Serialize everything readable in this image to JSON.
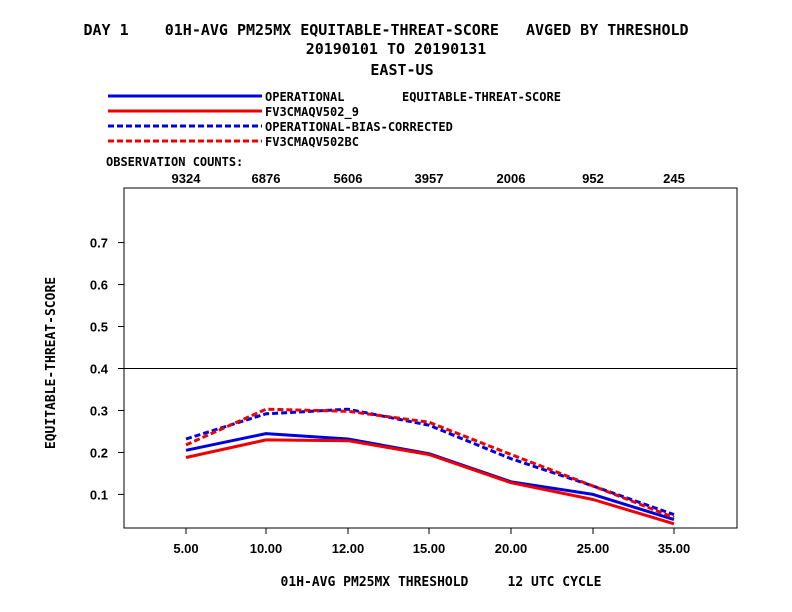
{
  "header": {
    "title_line1": "DAY 1    01H-AVG PM25MX EQUITABLE-THREAT-SCORE   AVGED BY THRESHOLD",
    "title_line2": "20190101 TO 20190131",
    "title_line3": "EAST-US"
  },
  "chart_data": {
    "type": "line",
    "ylabel": "EQUITABLE-THREAT-SCORE",
    "xlabel": "01H-AVG PM25MX THRESHOLD     12 UTC CYCLE",
    "legend_label": "EQUITABLE-THREAT-SCORE",
    "legend_placement": "top-left above plot",
    "categories": [
      "5.00",
      "10.00",
      "12.00",
      "15.00",
      "20.00",
      "25.00",
      "35.00"
    ],
    "observation_counts_label": "OBSERVATION COUNTS:",
    "observation_counts": [
      "9324",
      "6876",
      "5606",
      "3957",
      "2006",
      "952",
      "245"
    ],
    "yticks": [
      "0.1",
      "0.2",
      "0.3",
      "0.4",
      "0.5",
      "0.6",
      "0.7"
    ],
    "ylim": [
      0.02,
      0.83
    ],
    "reference_line": 0.4,
    "grid": false,
    "series": [
      {
        "name": "OPERATIONAL",
        "color": "#0000dd",
        "style": "solid",
        "values": [
          0.205,
          0.245,
          0.232,
          0.197,
          0.13,
          0.1,
          0.04
        ]
      },
      {
        "name": "FV3CMAQV502_9",
        "color": "#ee0000",
        "style": "solid",
        "values": [
          0.188,
          0.23,
          0.228,
          0.195,
          0.128,
          0.088,
          0.03
        ]
      },
      {
        "name": "OPERATIONAL-BIAS-CORRECTED",
        "color": "#0000dd",
        "style": "dashed",
        "values": [
          0.232,
          0.292,
          0.303,
          0.265,
          0.185,
          0.12,
          0.052
        ]
      },
      {
        "name": "FV3CMAQV502BC",
        "color": "#ee0000",
        "style": "dashed",
        "values": [
          0.218,
          0.303,
          0.298,
          0.272,
          0.195,
          0.12,
          0.045
        ]
      }
    ]
  }
}
